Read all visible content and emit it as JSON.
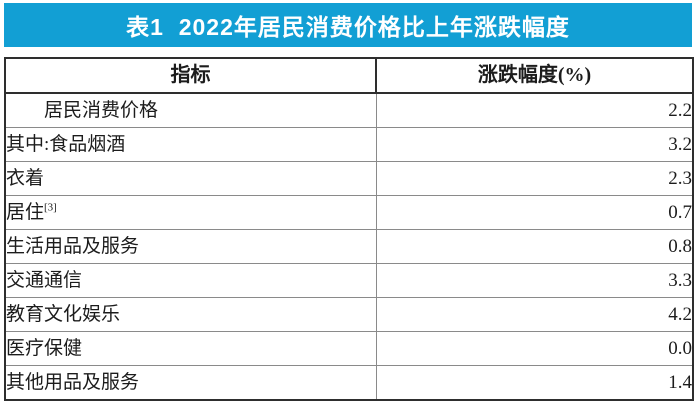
{
  "banner": {
    "title": "表1  2022年居民消费价格比上年涨跌幅度",
    "bg_color": "#129fd4",
    "text_color": "#ffffff"
  },
  "table": {
    "columns": [
      {
        "label": "指标"
      },
      {
        "label": "涨跌幅度(%)"
      }
    ],
    "rows": [
      {
        "indicator": "居民消费价格",
        "value": "2.2"
      },
      {
        "indicator": "其中:食品烟酒",
        "value": "3.2"
      },
      {
        "indicator": "衣着",
        "value": "2.3"
      },
      {
        "indicator": "居住",
        "footnote": "[3]",
        "value": "0.7"
      },
      {
        "indicator": "生活用品及服务",
        "value": "0.8"
      },
      {
        "indicator": "交通通信",
        "value": "3.3"
      },
      {
        "indicator": "教育文化娱乐",
        "value": "4.2"
      },
      {
        "indicator": "医疗保健",
        "value": "0.0"
      },
      {
        "indicator": "其他用品及服务",
        "value": "1.4"
      }
    ]
  },
  "chart_data": {
    "type": "table",
    "title": "表1  2022年居民消费价格比上年涨跌幅度",
    "categories": [
      "居民消费价格",
      "其中:食品烟酒",
      "衣着",
      "居住[3]",
      "生活用品及服务",
      "交通通信",
      "教育文化娱乐",
      "医疗保健",
      "其他用品及服务"
    ],
    "values": [
      2.2,
      3.2,
      2.3,
      0.7,
      0.8,
      3.3,
      4.2,
      0.0,
      1.4
    ],
    "xlabel": "指标",
    "ylabel": "涨跌幅度(%)"
  }
}
